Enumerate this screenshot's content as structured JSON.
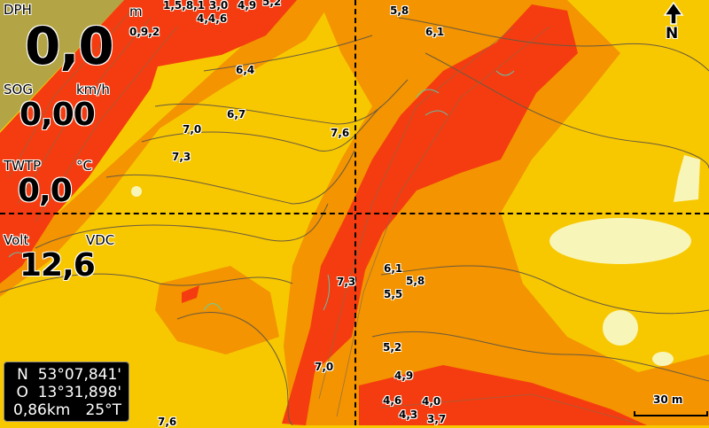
{
  "instruments": {
    "depth": {
      "label": "DPH",
      "unit": "m",
      "value": "0,0"
    },
    "sog": {
      "label": "SOG",
      "unit": "km/h",
      "value": "0,00"
    },
    "water_temp": {
      "label": "TWTP",
      "unit": "°C",
      "value": "0,0"
    },
    "voltage": {
      "label": "Volt",
      "unit": "VDC",
      "value": "12,6"
    }
  },
  "cursor_info": {
    "lat": "N  53°07,841'",
    "lon": "O  13°31,898'",
    "distance": "0,86km",
    "bearing": "25°T"
  },
  "compass": {
    "north_label": "N"
  },
  "scale_bar": {
    "label": "30 m"
  },
  "depth_labels": [
    "0,9,2",
    "1,5,8,1",
    "3,0",
    "4,9",
    "5,2",
    "4,4,6",
    "5,8",
    "6,1",
    "6,4",
    "6,7",
    "7,0",
    "7,3",
    "7,6",
    "7,3",
    "6,1",
    "5,8",
    "5,5",
    "5,2",
    "4,9",
    "4,6",
    "4,0",
    "4,3",
    "3,7",
    "7,0",
    "7,6"
  ],
  "colors": {
    "land": "#b3a445",
    "shallow": "#f53c10",
    "mid": "#f39400",
    "deep": "#f7c800",
    "very_deep": "#f8f5b8",
    "contour": "#6a5a40",
    "weed": "#40e0d0"
  }
}
